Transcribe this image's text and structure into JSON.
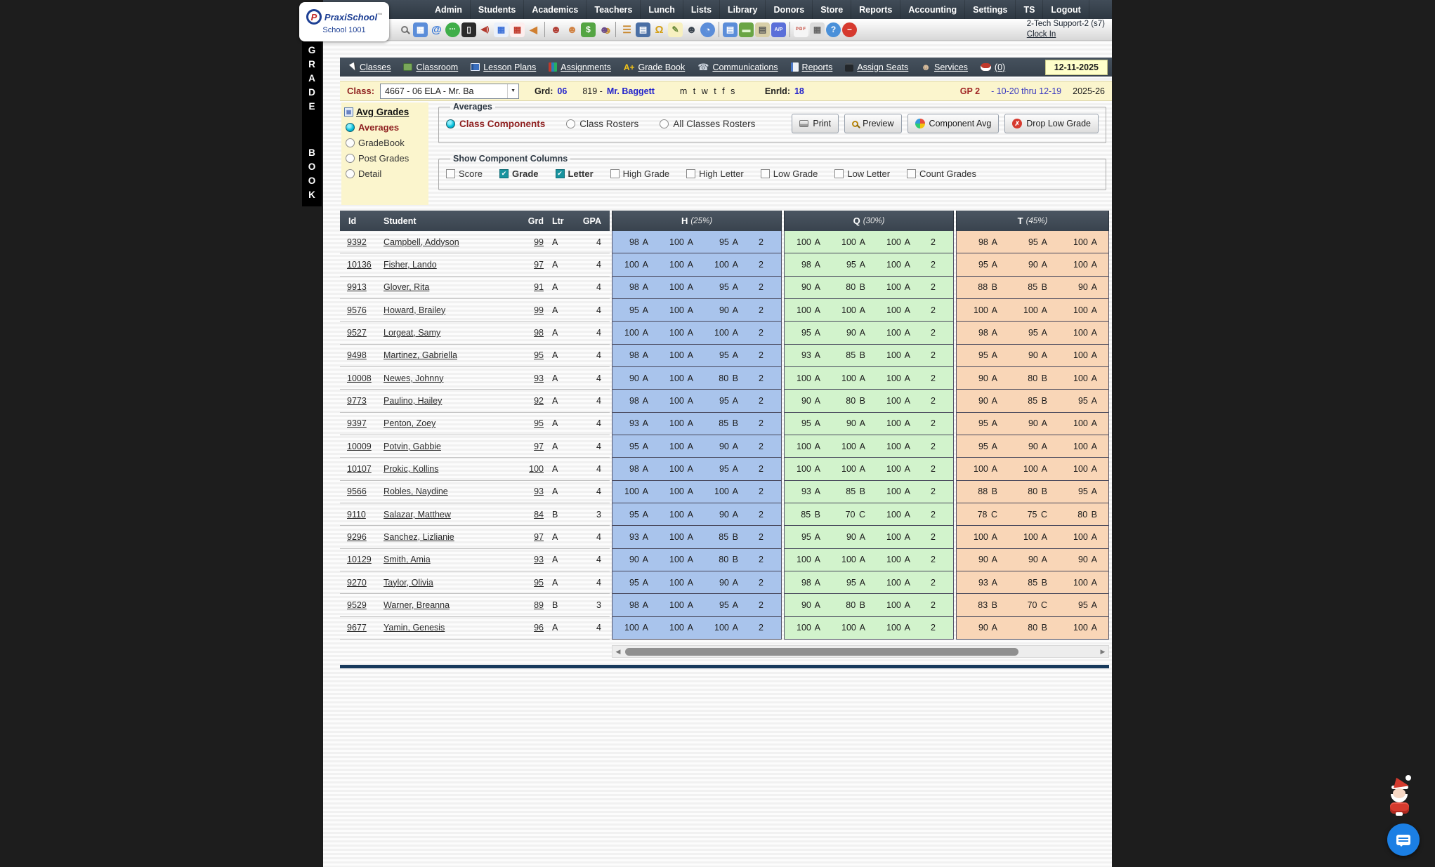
{
  "logo": {
    "name": "PraxiSchool",
    "tm": "™",
    "school": "School 1001",
    "initial": "P"
  },
  "menu": {
    "items": [
      "Admin",
      "Students",
      "Academics",
      "Teachers",
      "Lunch",
      "Lists",
      "Library",
      "Donors",
      "Store",
      "Reports",
      "Accounting",
      "Settings",
      "TS",
      "Logout"
    ]
  },
  "toolbar": {
    "user": "2-Tech Support-2 (s7)",
    "clock_in": "Clock In",
    "icons": [
      {
        "name": "search-icon",
        "css": "ic-mag-gray"
      },
      {
        "name": "calendar-icon",
        "glyph": "▦",
        "fg": "#ffffff",
        "bg": "#5b8dd9"
      },
      {
        "name": "email-icon",
        "glyph": "@",
        "fg": "#2a6fd6",
        "fs": 15
      },
      {
        "name": "chat-icon",
        "glyph": "•••",
        "fg": "#ffffff",
        "bg": "#3fae49",
        "fs": 6,
        "round": true
      },
      {
        "name": "phone-icon",
        "glyph": "▯",
        "fg": "#eeeeee",
        "bg": "#2b2b2b"
      },
      {
        "name": "speaker-icon",
        "glyph": "◀)",
        "fg": "#b33a2e",
        "fs": 11
      },
      {
        "name": "attendance-grid-icon",
        "glyph": "▦",
        "fg": "#3a6fd8",
        "bg": "#eaf0fa"
      },
      {
        "name": "calendar-red-icon",
        "glyph": "▦",
        "fg": "#c0392b",
        "bg": "#fdeeee"
      },
      {
        "name": "megaphone-icon",
        "glyph": "◀",
        "fg": "#d07f30",
        "fs": 14
      },
      {
        "name": "divider"
      },
      {
        "name": "add-student-icon",
        "glyph": "☻",
        "fg": "#b03a30",
        "fs": 15
      },
      {
        "name": "student-icon",
        "glyph": "☻",
        "fg": "#d08040",
        "fs": 15
      },
      {
        "name": "money-icon",
        "glyph": "$",
        "fg": "#ffffff",
        "bg": "#55a544",
        "fs": 12
      },
      {
        "name": "family-icon",
        "glyph": "☻",
        "fg": "#6a4a8a",
        "fs": 14,
        "shadow": "#c89030"
      },
      {
        "name": "divider"
      },
      {
        "name": "lunch-icon",
        "glyph": "☰",
        "fg": "#c8862a",
        "fs": 14
      },
      {
        "name": "kiosk-icon",
        "glyph": "▤",
        "fg": "#ffffff",
        "bg": "#4a6fa5"
      },
      {
        "name": "bell-icon",
        "glyph": "Ω",
        "fg": "#d4a017",
        "fs": 15
      },
      {
        "name": "note-add-icon",
        "glyph": "✎",
        "fg": "#6a8a3a",
        "bg": "#f7f0c0"
      },
      {
        "name": "staff-icon",
        "glyph": "☻",
        "fg": "#39434e",
        "fs": 15
      },
      {
        "name": "clock-icon",
        "glyph": "◔",
        "fg": "#ffffff",
        "bg": "#5b8dd9",
        "round": true,
        "fs": 13
      },
      {
        "name": "divider"
      },
      {
        "name": "ledger-icon",
        "glyph": "▤",
        "fg": "#ffffff",
        "bg": "#5b8dd9"
      },
      {
        "name": "card-icon",
        "glyph": "▬",
        "fg": "#dff5d0",
        "bg": "#6aa545"
      },
      {
        "name": "print-check-icon",
        "glyph": "▤",
        "fg": "#555555",
        "bg": "#d8cfa8"
      },
      {
        "name": "ap-icon",
        "glyph": "A/P",
        "fg": "#ffffff",
        "bg": "#5b6fd9",
        "fs": 7
      },
      {
        "name": "divider"
      },
      {
        "name": "pdf-icon",
        "glyph": "PDF",
        "fg": "#c0392b",
        "bg": "#f5f5f5",
        "fs": 6
      },
      {
        "name": "printer-icon",
        "glyph": "▦",
        "fg": "#666666",
        "bg": "#dcdcdc"
      },
      {
        "name": "help-icon",
        "glyph": "?",
        "fg": "#ffffff",
        "bg": "#4a90d9",
        "round": true,
        "fs": 12
      },
      {
        "name": "alert-icon",
        "glyph": "−",
        "fg": "#ffffff",
        "bg": "#d63a2f",
        "round": true,
        "fs": 12
      }
    ]
  },
  "vertical_banner": {
    "top": "GRADE",
    "bottom": "BOOK"
  },
  "tabs": {
    "date": "12-11-2025",
    "items": [
      {
        "label": "Classes",
        "icon": {
          "name": "cursor-icon",
          "cls": "cursor"
        }
      },
      {
        "label": "Classroom",
        "icon": {
          "name": "classroom-icon",
          "cls": "classroom"
        }
      },
      {
        "label": "Lesson Plans",
        "icon": {
          "name": "lesson-plans-icon",
          "cls": "lesson-plans"
        }
      },
      {
        "label": "Assignments",
        "icon": {
          "name": "assignments-icon",
          "cls": "assignments"
        }
      },
      {
        "label": "Grade Book",
        "icon": {
          "name": "grade-book-icon",
          "cls": "grade-book",
          "glyph": "A+",
          "color": "#f5c518"
        }
      },
      {
        "label": "Communications",
        "icon": {
          "name": "communications-icon",
          "cls": "communications",
          "glyph": "☎",
          "color": "#ccd4de"
        }
      },
      {
        "label": "Reports",
        "icon": {
          "name": "reports-icon",
          "cls": "reports"
        }
      },
      {
        "label": "Assign Seats",
        "icon": {
          "name": "assign-seats-icon",
          "cls": "assign-seats"
        }
      },
      {
        "label": "Services",
        "icon": {
          "name": "services-icon",
          "cls": "services",
          "glyph": "☻",
          "color": "#d9bd9c"
        }
      },
      {
        "label": "(0)",
        "icon": {
          "name": "messages-icon",
          "cls": "messages"
        }
      }
    ]
  },
  "class_bar": {
    "class_label": "Class:",
    "class_value": "4667 - 06 ELA - Mr. Ba",
    "grd_label": "Grd:",
    "grd_value": "06",
    "teacher_prefix": "819 -",
    "teacher": "Mr. Baggett",
    "days": "m t w t f s",
    "enrolled_label": "Enrld:",
    "enrolled_value": "18",
    "gp": "GP 2",
    "range": "- 10-20 thru 12-19",
    "year": "2025-26"
  },
  "sidebar": {
    "title": "Avg Grades",
    "options": [
      {
        "label": "Averages",
        "selected": true
      },
      {
        "label": "GradeBook",
        "selected": false
      },
      {
        "label": "Post Grades",
        "selected": false
      },
      {
        "label": "Detail",
        "selected": false
      }
    ]
  },
  "averages_panel": {
    "legend": "Averages",
    "radios": [
      {
        "label": "Class Components",
        "selected": true
      },
      {
        "label": "Class Rosters",
        "selected": false
      },
      {
        "label": "All Classes Rosters",
        "selected": false
      }
    ],
    "buttons": [
      {
        "label": "Print",
        "icon": "printer"
      },
      {
        "label": "Preview",
        "icon": "magnifier"
      },
      {
        "label": "Component Avg",
        "icon": "pie"
      },
      {
        "label": "Drop Low Grade",
        "icon": "dropx"
      }
    ]
  },
  "component_columns": {
    "legend": "Show Component Columns",
    "checkboxes": [
      {
        "label": "Score",
        "checked": false
      },
      {
        "label": "Grade",
        "checked": true
      },
      {
        "label": "Letter",
        "checked": true
      },
      {
        "label": "High Grade",
        "checked": false
      },
      {
        "label": "High Letter",
        "checked": false
      },
      {
        "label": "Low Grade",
        "checked": false
      },
      {
        "label": "Low Letter",
        "checked": false
      },
      {
        "label": "Count Grades",
        "checked": false
      }
    ]
  },
  "glyphs": {
    "check": "✔",
    "x": "✗",
    "select_arrow": "▼",
    "scroll_left": "◀",
    "scroll_right": "▶"
  },
  "colors": {
    "section_h": "#a9c4ec",
    "section_q": "#d2f3cc",
    "section_t": "#f9d6b7",
    "accent_red": "#8e1f1f",
    "accent_blue": "#2222cc",
    "bar_yellow": "#fbf5cd",
    "header_dark": "#39434e",
    "checked_teal": "#18939e"
  },
  "table": {
    "headers": {
      "id": "Id",
      "student": "Student",
      "grd": "Grd",
      "ltr": "Ltr",
      "gpa": "GPA",
      "h": "H",
      "h_pct": "(25%)",
      "q": "Q",
      "q_pct": "(30%)",
      "t": "T",
      "t_pct": "(45%)"
    },
    "students": [
      {
        "id": "9392",
        "name": "Campbell, Addyson",
        "grd": "99",
        "ltr": "A",
        "gpa": "4",
        "h": [
          "98 A",
          "100 A",
          "95 A",
          "2"
        ],
        "q": [
          "100 A",
          "100 A",
          "100 A",
          "2"
        ],
        "t": [
          "98 A",
          "95 A",
          "100 A"
        ]
      },
      {
        "id": "10136",
        "name": "Fisher, Lando",
        "grd": "97",
        "ltr": "A",
        "gpa": "4",
        "h": [
          "100 A",
          "100 A",
          "100 A",
          "2"
        ],
        "q": [
          "98 A",
          "95 A",
          "100 A",
          "2"
        ],
        "t": [
          "95 A",
          "90 A",
          "100 A"
        ]
      },
      {
        "id": "9913",
        "name": "Glover, Rita",
        "grd": "91",
        "ltr": "A",
        "gpa": "4",
        "h": [
          "98 A",
          "100 A",
          "95 A",
          "2"
        ],
        "q": [
          "90 A",
          "80 B",
          "100 A",
          "2"
        ],
        "t": [
          "88 B",
          "85 B",
          "90 A"
        ]
      },
      {
        "id": "9576",
        "name": "Howard, Brailey",
        "grd": "99",
        "ltr": "A",
        "gpa": "4",
        "h": [
          "95 A",
          "100 A",
          "90 A",
          "2"
        ],
        "q": [
          "100 A",
          "100 A",
          "100 A",
          "2"
        ],
        "t": [
          "100 A",
          "100 A",
          "100 A"
        ]
      },
      {
        "id": "9527",
        "name": "Lorgeat, Samy",
        "grd": "98",
        "ltr": "A",
        "gpa": "4",
        "h": [
          "100 A",
          "100 A",
          "100 A",
          "2"
        ],
        "q": [
          "95 A",
          "90 A",
          "100 A",
          "2"
        ],
        "t": [
          "98 A",
          "95 A",
          "100 A"
        ]
      },
      {
        "id": "9498",
        "name": "Martinez, Gabriella",
        "grd": "95",
        "ltr": "A",
        "gpa": "4",
        "h": [
          "98 A",
          "100 A",
          "95 A",
          "2"
        ],
        "q": [
          "93 A",
          "85 B",
          "100 A",
          "2"
        ],
        "t": [
          "95 A",
          "90 A",
          "100 A"
        ]
      },
      {
        "id": "10008",
        "name": "Newes, Johnny",
        "grd": "93",
        "ltr": "A",
        "gpa": "4",
        "h": [
          "90 A",
          "100 A",
          "80 B",
          "2"
        ],
        "q": [
          "100 A",
          "100 A",
          "100 A",
          "2"
        ],
        "t": [
          "90 A",
          "80 B",
          "100 A"
        ]
      },
      {
        "id": "9773",
        "name": "Paulino, Hailey",
        "grd": "92",
        "ltr": "A",
        "gpa": "4",
        "h": [
          "98 A",
          "100 A",
          "95 A",
          "2"
        ],
        "q": [
          "90 A",
          "80 B",
          "100 A",
          "2"
        ],
        "t": [
          "90 A",
          "85 B",
          "95 A"
        ]
      },
      {
        "id": "9397",
        "name": "Penton, Zoey",
        "grd": "95",
        "ltr": "A",
        "gpa": "4",
        "h": [
          "93 A",
          "100 A",
          "85 B",
          "2"
        ],
        "q": [
          "95 A",
          "90 A",
          "100 A",
          "2"
        ],
        "t": [
          "95 A",
          "90 A",
          "100 A"
        ]
      },
      {
        "id": "10009",
        "name": "Potvin, Gabbie",
        "grd": "97",
        "ltr": "A",
        "gpa": "4",
        "h": [
          "95 A",
          "100 A",
          "90 A",
          "2"
        ],
        "q": [
          "100 A",
          "100 A",
          "100 A",
          "2"
        ],
        "t": [
          "95 A",
          "90 A",
          "100 A"
        ]
      },
      {
        "id": "10107",
        "name": "Prokic, Kollins",
        "grd": "100",
        "ltr": "A",
        "gpa": "4",
        "h": [
          "98 A",
          "100 A",
          "95 A",
          "2"
        ],
        "q": [
          "100 A",
          "100 A",
          "100 A",
          "2"
        ],
        "t": [
          "100 A",
          "100 A",
          "100 A"
        ]
      },
      {
        "id": "9566",
        "name": "Robles, Naydine",
        "grd": "93",
        "ltr": "A",
        "gpa": "4",
        "h": [
          "100 A",
          "100 A",
          "100 A",
          "2"
        ],
        "q": [
          "93 A",
          "85 B",
          "100 A",
          "2"
        ],
        "t": [
          "88 B",
          "80 B",
          "95 A"
        ]
      },
      {
        "id": "9110",
        "name": "Salazar, Matthew",
        "grd": "84",
        "ltr": "B",
        "gpa": "3",
        "h": [
          "95 A",
          "100 A",
          "90 A",
          "2"
        ],
        "q": [
          "85 B",
          "70 C",
          "100 A",
          "2"
        ],
        "t": [
          "78 C",
          "75 C",
          "80 B"
        ]
      },
      {
        "id": "9296",
        "name": "Sanchez, Lizlianie",
        "grd": "97",
        "ltr": "A",
        "gpa": "4",
        "h": [
          "93 A",
          "100 A",
          "85 B",
          "2"
        ],
        "q": [
          "95 A",
          "90 A",
          "100 A",
          "2"
        ],
        "t": [
          "100 A",
          "100 A",
          "100 A"
        ]
      },
      {
        "id": "10129",
        "name": "Smith, Amia",
        "grd": "93",
        "ltr": "A",
        "gpa": "4",
        "h": [
          "90 A",
          "100 A",
          "80 B",
          "2"
        ],
        "q": [
          "100 A",
          "100 A",
          "100 A",
          "2"
        ],
        "t": [
          "90 A",
          "90 A",
          "90 A"
        ]
      },
      {
        "id": "9270",
        "name": "Taylor, Olivia",
        "grd": "95",
        "ltr": "A",
        "gpa": "4",
        "h": [
          "95 A",
          "100 A",
          "90 A",
          "2"
        ],
        "q": [
          "98 A",
          "95 A",
          "100 A",
          "2"
        ],
        "t": [
          "93 A",
          "85 B",
          "100 A"
        ]
      },
      {
        "id": "9529",
        "name": "Warner, Breanna",
        "grd": "89",
        "ltr": "B",
        "gpa": "3",
        "h": [
          "98 A",
          "100 A",
          "95 A",
          "2"
        ],
        "q": [
          "90 A",
          "80 B",
          "100 A",
          "2"
        ],
        "t": [
          "83 B",
          "70 C",
          "95 A"
        ]
      },
      {
        "id": "9677",
        "name": "Yamin, Genesis",
        "grd": "96",
        "ltr": "A",
        "gpa": "4",
        "h": [
          "100 A",
          "100 A",
          "100 A",
          "2"
        ],
        "q": [
          "100 A",
          "100 A",
          "100 A",
          "2"
        ],
        "t": [
          "90 A",
          "80 B",
          "100 A"
        ]
      }
    ]
  }
}
